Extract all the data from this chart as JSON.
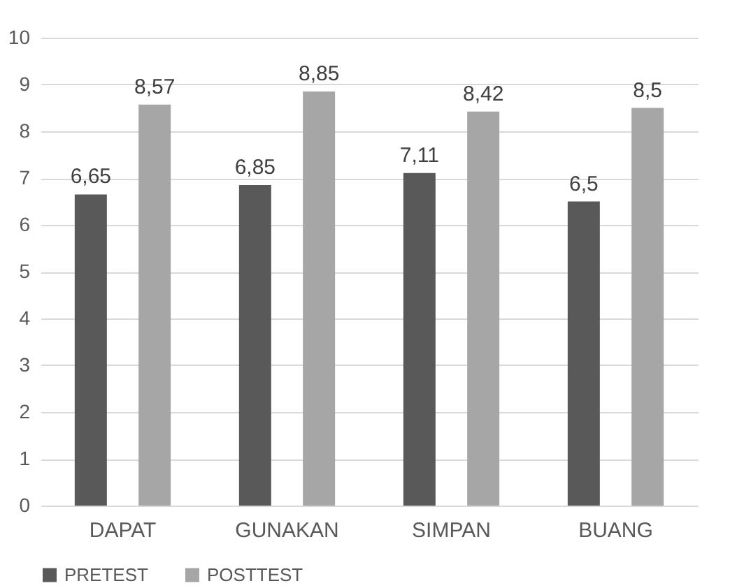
{
  "chart_data": {
    "type": "bar",
    "categories": [
      "DAPAT",
      "GUNAKAN",
      "SIMPAN",
      "BUANG"
    ],
    "series": [
      {
        "name": "PRETEST",
        "color": "#595959",
        "values": [
          6.65,
          6.85,
          7.11,
          6.5
        ],
        "value_labels": [
          "6,65",
          "6,85",
          "7,11",
          "6,5"
        ]
      },
      {
        "name": "POSTTEST",
        "color": "#a6a6a6",
        "values": [
          8.57,
          8.85,
          8.42,
          8.5
        ],
        "value_labels": [
          "8,57",
          "8,85",
          "8,42",
          "8,5"
        ]
      }
    ],
    "ylim": [
      0,
      10
    ],
    "yticks": [
      0,
      1,
      2,
      3,
      4,
      5,
      6,
      7,
      8,
      9,
      10
    ],
    "grid": "y",
    "legend": "bottom"
  }
}
